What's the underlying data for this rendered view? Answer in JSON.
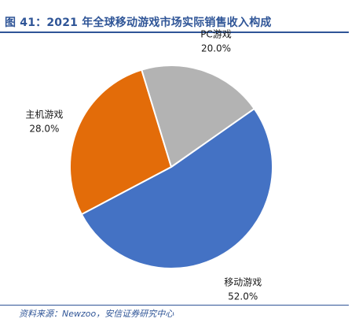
{
  "figure": {
    "title": "图 41：2021 年全球移动游戏市场实际销售收入构成",
    "source": "资料来源：Newzoo，安信证券研究中心"
  },
  "chart_data": {
    "type": "pie",
    "categories": [
      "移动游戏",
      "主机游戏",
      "PC游戏"
    ],
    "values": [
      52.0,
      28.0,
      20.0
    ],
    "value_labels": [
      "52.0%",
      "28.0%",
      "20.0%"
    ],
    "colors": [
      "#4472c4",
      "#e36c09",
      "#b3b3b3"
    ],
    "title": "",
    "legend": "none"
  }
}
